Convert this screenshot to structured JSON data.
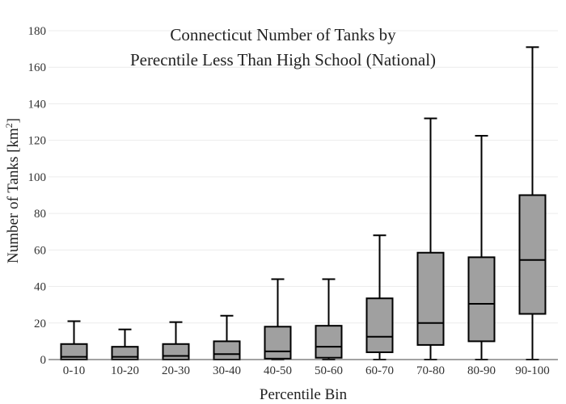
{
  "chart_data": {
    "type": "box",
    "title_lines": [
      "Connecticut Number of Tanks by",
      "Perecntile Less Than High School (National)"
    ],
    "xlabel": "Percentile Bin",
    "ylabel_main": "Number of Tanks  [km",
    "ylabel_sup": "2",
    "ylabel_close": "]",
    "ylim": [
      0,
      180
    ],
    "yticks": [
      0,
      20,
      40,
      60,
      80,
      100,
      120,
      140,
      160,
      180
    ],
    "grid": true,
    "categories": [
      "0-10",
      "10-20",
      "20-30",
      "30-40",
      "40-50",
      "50-60",
      "60-70",
      "70-80",
      "80-90",
      "90-100"
    ],
    "boxes": [
      {
        "min": 0,
        "q1": 0,
        "median": 1.5,
        "q3": 8.5,
        "max": 21
      },
      {
        "min": 0,
        "q1": 0,
        "median": 1.5,
        "q3": 7,
        "max": 16.5
      },
      {
        "min": 0,
        "q1": 0,
        "median": 2,
        "q3": 8.5,
        "max": 20.5
      },
      {
        "min": 0,
        "q1": 0,
        "median": 3,
        "q3": 10,
        "max": 24
      },
      {
        "min": 0,
        "q1": 0.5,
        "median": 4.5,
        "q3": 18,
        "max": 44
      },
      {
        "min": 0,
        "q1": 1,
        "median": 7,
        "q3": 18.5,
        "max": 44
      },
      {
        "min": 0,
        "q1": 4,
        "median": 12.5,
        "q3": 33.5,
        "max": 68
      },
      {
        "min": 0,
        "q1": 8,
        "median": 20,
        "q3": 58.5,
        "max": 132
      },
      {
        "min": 0,
        "q1": 10,
        "median": 30.5,
        "q3": 56,
        "max": 122.5
      },
      {
        "min": 0,
        "q1": 25,
        "median": 54.5,
        "q3": 90,
        "max": 171
      }
    ]
  }
}
